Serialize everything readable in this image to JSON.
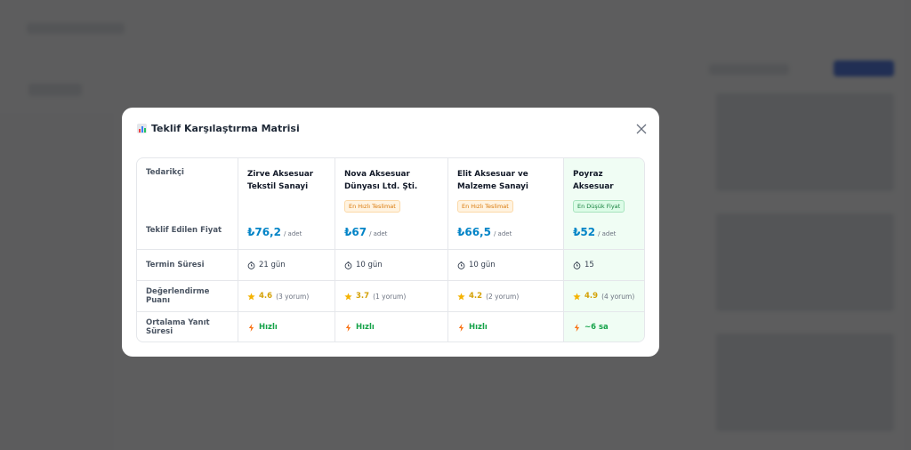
{
  "modal": {
    "title": "Teklif Karşılaştırma Matrisi",
    "row_labels": [
      "Tedarikçi",
      "Teklif Edilen Fiyat",
      "Termin Süresi",
      "Değerlendirme Puanı",
      "Ortalama Yanıt Süresi"
    ],
    "suppliers": [
      {
        "name": "Zirve Aksesuar Tekstil Sanayi",
        "price": "₺76,2",
        "unit": "/ adet",
        "delivery": "21 gün",
        "rating": "4.6",
        "reviews": "(3 yorum)",
        "response": "Hızlı"
      },
      {
        "name": "Nova Aksesuar Dünyası Ltd. Şti.",
        "badge": "En Hızlı Teslimat",
        "price": "₺67",
        "unit": "/ adet",
        "delivery": "10 gün",
        "rating": "3.7",
        "reviews": "(1 yorum)",
        "response": "Hızlı"
      },
      {
        "name": "Elit Aksesuar ve Malzeme Sanayi",
        "badge": "En Hızlı Teslimat",
        "price": "₺66,5",
        "unit": "/ adet",
        "delivery": "10 gün",
        "rating": "4.2",
        "reviews": "(2 yorum)",
        "response": "Hızlı"
      },
      {
        "name": "Poyraz Aksesuar",
        "badge": "En Düşük Fiyat",
        "badge_type": "green",
        "highlight": true,
        "price": "₺52",
        "unit": "/ adet",
        "delivery": "15",
        "rating": "4.9",
        "reviews": "(4 yorum)",
        "response": "~6 sa"
      }
    ]
  }
}
